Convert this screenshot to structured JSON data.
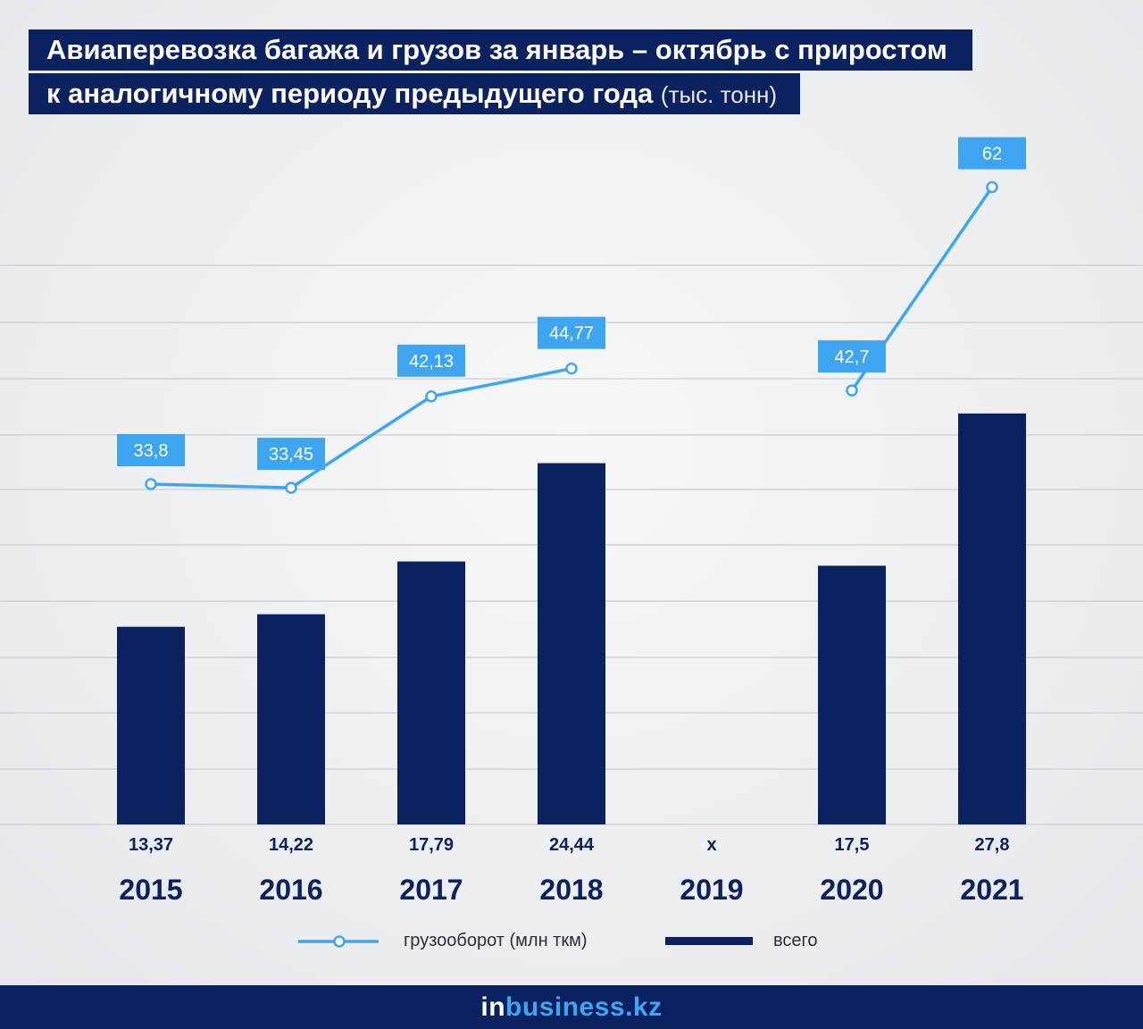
{
  "title": {
    "line1": "Авиаперевозка багажа и грузов за январь – октябрь с приростом",
    "line2": "к аналогичному периоду предыдущего года",
    "unit": "(тыс. тонн)"
  },
  "colors": {
    "bar": "#0c2260",
    "line": "#3ea6f1",
    "label_box": "#3ea6f1",
    "grid": "#cfd2d8"
  },
  "chart_data": {
    "type": "bar",
    "categories": [
      "2015",
      "2016",
      "2017",
      "2018",
      "2019",
      "2020",
      "2021"
    ],
    "series": [
      {
        "name": "всего",
        "type": "bar",
        "values": [
          13.37,
          14.22,
          17.79,
          24.44,
          null,
          17.5,
          27.8
        ],
        "labels": [
          "13,37",
          "14,22",
          "17,79",
          "24,44",
          "x",
          "17,5",
          "27,8"
        ]
      },
      {
        "name": "грузооборот (млн ткм)",
        "type": "line",
        "values": [
          33.8,
          33.45,
          42.13,
          44.77,
          null,
          42.7,
          62
        ],
        "labels": [
          "33,8",
          "33,45",
          "42,13",
          "44,77",
          "",
          "42,7",
          "62"
        ]
      }
    ],
    "legend_position": "bottom",
    "grid": true
  },
  "legend": {
    "line_label": "грузооборот (млн ткм)",
    "bar_label": "всего"
  },
  "footer": {
    "logo_prefix": "in",
    "logo_rest": "business.kz"
  }
}
